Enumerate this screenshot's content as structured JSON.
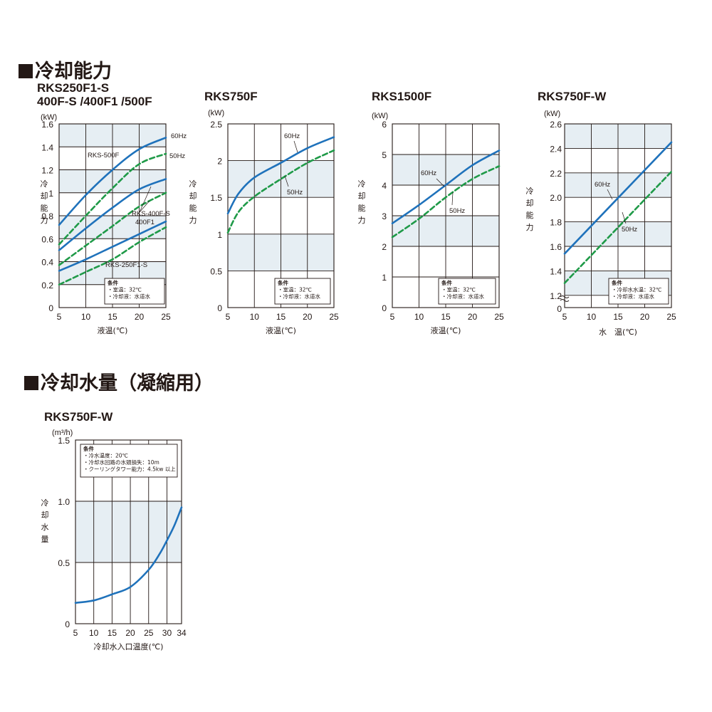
{
  "sections": {
    "cooling_capacity": "冷却能力",
    "cooling_water": "冷却水量（凝縮用）"
  },
  "colors": {
    "line_60hz": "#1f72bb",
    "line_50hz": "#1f9a48",
    "band": "#e6eef3",
    "grid": "#231815"
  },
  "chart_data": [
    {
      "id": "rks250",
      "type": "line",
      "title_lines": [
        "RKS250F1-S",
        "400F-S /400F1 /500F"
      ],
      "unit": "(kW)",
      "ylabel": "冷却能力",
      "xlabel": "液温(℃)",
      "xlim": [
        5,
        25
      ],
      "ylim": [
        0,
        1.6
      ],
      "x_ticks": [
        "5",
        "10",
        "15",
        "20",
        "25"
      ],
      "y_ticks": [
        "0",
        "0.2",
        "0.4",
        "0.6",
        "0.8",
        "1",
        "1.2",
        "1.4",
        "1.6"
      ],
      "shaded_bands": [
        [
          0.2,
          0.4
        ],
        [
          0.6,
          0.8
        ],
        [
          1.0,
          1.2
        ],
        [
          1.4,
          1.6
        ]
      ],
      "x_grid": [
        10,
        15,
        20
      ],
      "y_grid": [
        0.2,
        0.4,
        0.6,
        0.8,
        1.0,
        1.2,
        1.4
      ],
      "series": [
        {
          "group": "RKS-500F",
          "freq": "60Hz",
          "style": "solid",
          "x": [
            5,
            10,
            15,
            20,
            25
          ],
          "values": [
            0.72,
            0.98,
            1.2,
            1.38,
            1.48
          ]
        },
        {
          "group": "RKS-500F",
          "freq": "50Hz",
          "style": "dashed",
          "x": [
            5,
            10,
            15,
            20,
            25
          ],
          "values": [
            0.55,
            0.8,
            1.04,
            1.25,
            1.34
          ]
        },
        {
          "group": "RKS-400F-S/400F1",
          "freq": "60Hz",
          "style": "solid",
          "x": [
            5,
            10,
            15,
            20,
            25
          ],
          "values": [
            0.5,
            0.69,
            0.87,
            1.03,
            1.12
          ]
        },
        {
          "group": "RKS-400F-S/400F1",
          "freq": "50Hz",
          "style": "dashed",
          "x": [
            5,
            10,
            15,
            20,
            25
          ],
          "values": [
            0.37,
            0.54,
            0.71,
            0.88,
            1.0
          ]
        },
        {
          "group": "RKS-250F1-S",
          "freq": "60Hz",
          "style": "solid",
          "x": [
            5,
            10,
            15,
            20,
            25
          ],
          "values": [
            0.32,
            0.42,
            0.53,
            0.64,
            0.75
          ]
        },
        {
          "group": "RKS-250F1-S",
          "freq": "50Hz",
          "style": "dashed",
          "x": [
            5,
            10,
            15,
            20,
            25
          ],
          "values": [
            0.2,
            0.31,
            0.42,
            0.57,
            0.7
          ]
        }
      ],
      "annotations": {
        "a60": "60Hz",
        "a50": "50Hz",
        "g1": "RKS-500F",
        "g2a": "RKS-400F-S",
        "g2b": "400F1",
        "g3": "RKS-250F1-S"
      },
      "conditions": [
        "条件",
        "・室温：32℃",
        "・冷却液：水道水"
      ]
    },
    {
      "id": "rks750",
      "type": "line",
      "title_lines": [
        "RKS750F"
      ],
      "unit": "(kW)",
      "ylabel": "冷却能力",
      "xlabel": "液温(℃)",
      "xlim": [
        5,
        25
      ],
      "ylim": [
        0,
        2.5
      ],
      "x_ticks": [
        "5",
        "10",
        "15",
        "20",
        "25"
      ],
      "y_ticks": [
        "0",
        "0.5",
        "1",
        "1.5",
        "2",
        "2.5"
      ],
      "shaded_bands": [
        [
          0.5,
          1.0
        ],
        [
          1.5,
          2.0
        ]
      ],
      "x_grid": [
        10,
        15,
        20
      ],
      "y_grid": [
        0.5,
        1.0,
        1.5,
        2.0
      ],
      "series": [
        {
          "freq": "60Hz",
          "style": "solid",
          "x": [
            5,
            7,
            10,
            15,
            20,
            25
          ],
          "values": [
            1.28,
            1.55,
            1.77,
            1.97,
            2.17,
            2.32
          ]
        },
        {
          "freq": "50Hz",
          "style": "dashed",
          "x": [
            5,
            7,
            10,
            15,
            20,
            25
          ],
          "values": [
            1.02,
            1.3,
            1.51,
            1.75,
            1.97,
            2.14
          ]
        }
      ],
      "annotations": {
        "a60": "60Hz",
        "a50": "50Hz"
      },
      "conditions": [
        "条件",
        "・室温：32℃",
        "・冷却液：水道水"
      ]
    },
    {
      "id": "rks1500",
      "type": "line",
      "title_lines": [
        "RKS1500F"
      ],
      "unit": "(kW)",
      "ylabel": "冷却能力",
      "xlabel": "液温(℃)",
      "xlim": [
        5,
        25
      ],
      "ylim": [
        0,
        6
      ],
      "x_ticks": [
        "5",
        "10",
        "15",
        "20",
        "25"
      ],
      "y_ticks": [
        "0",
        "1",
        "2",
        "3",
        "4",
        "5",
        "6"
      ],
      "shaded_bands": [
        [
          2,
          3
        ],
        [
          4,
          5
        ]
      ],
      "x_grid": [
        10,
        15,
        20
      ],
      "y_grid": [
        1,
        2,
        3,
        4,
        5
      ],
      "series": [
        {
          "freq": "60Hz",
          "style": "solid",
          "x": [
            5,
            10,
            15,
            20,
            25
          ],
          "values": [
            2.75,
            3.35,
            4.0,
            4.65,
            5.13
          ]
        },
        {
          "freq": "50Hz",
          "style": "dashed",
          "x": [
            5,
            10,
            15,
            20,
            25
          ],
          "values": [
            2.3,
            2.9,
            3.6,
            4.2,
            4.62
          ]
        }
      ],
      "annotations": {
        "a60": "60Hz",
        "a50": "50Hz"
      },
      "conditions": [
        "条件",
        "・室温：32℃",
        "・冷却液：水道水"
      ]
    },
    {
      "id": "rks750w",
      "type": "line",
      "title_lines": [
        "RKS750F-W"
      ],
      "unit": "(kW)",
      "ylabel": "冷却能力",
      "xlabel": "水　温(℃)",
      "xlim": [
        5,
        25
      ],
      "ylim": [
        1.1,
        2.6
      ],
      "y_axis_break": true,
      "x_ticks": [
        "5",
        "10",
        "15",
        "20",
        "25"
      ],
      "y_ticks": [
        "0",
        "1.2",
        "1.4",
        "1.6",
        "1.8",
        "2.0",
        "2.2",
        "2.4",
        "2.6"
      ],
      "shaded_bands": [
        [
          1.2,
          1.4
        ],
        [
          1.6,
          1.8
        ],
        [
          2.0,
          2.2
        ],
        [
          2.4,
          2.6
        ]
      ],
      "x_grid": [
        10,
        15,
        20
      ],
      "y_grid": [
        1.2,
        1.4,
        1.6,
        1.8,
        2.0,
        2.2,
        2.4
      ],
      "series": [
        {
          "freq": "60Hz",
          "style": "solid",
          "x": [
            5,
            25
          ],
          "values": [
            1.54,
            2.45
          ]
        },
        {
          "freq": "50Hz",
          "style": "dashed",
          "x": [
            5,
            25
          ],
          "values": [
            1.3,
            2.21
          ]
        }
      ],
      "annotations": {
        "a60": "60Hz",
        "a50": "50Hz"
      },
      "conditions": [
        "条件",
        "・冷却水水温：32℃",
        "・冷却液：水道水"
      ]
    },
    {
      "id": "water",
      "type": "line",
      "title_lines": [
        "RKS750F-W"
      ],
      "unit": "(m³/h)",
      "ylabel": "冷却水量",
      "xlabel": "冷却水入口温度(℃)",
      "xlim": [
        5,
        34
      ],
      "ylim": [
        0,
        1.5
      ],
      "x_ticks": [
        "5",
        "10",
        "15",
        "20",
        "25",
        "30",
        "34"
      ],
      "x_tick_values": [
        5,
        10,
        15,
        20,
        25,
        30,
        34
      ],
      "y_ticks": [
        "0",
        "0.5",
        "1.0",
        "1.5"
      ],
      "shaded_bands": [
        [
          0.5,
          1.0
        ]
      ],
      "x_grid": [
        10,
        15,
        20,
        25,
        30
      ],
      "y_grid": [
        0.5,
        1.0
      ],
      "series": [
        {
          "freq": "",
          "style": "solid",
          "x": [
            5,
            10,
            15,
            20,
            25,
            28,
            30,
            32,
            34
          ],
          "values": [
            0.17,
            0.19,
            0.24,
            0.3,
            0.44,
            0.57,
            0.68,
            0.8,
            0.95
          ]
        }
      ],
      "conditions": [
        "条件",
        "・冷水温度：20℃",
        "・冷却水回路の水頭損失：10m",
        "・クーリングタワー能力：4.5kw 以上"
      ]
    }
  ]
}
